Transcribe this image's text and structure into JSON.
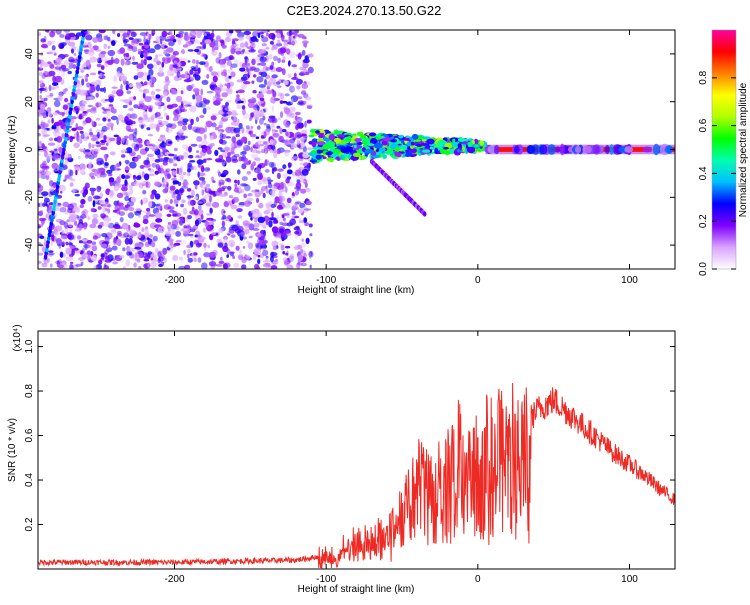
{
  "figure": {
    "title": "C2E3.2024.270.13.50.G22"
  },
  "chart_data": [
    {
      "type": "heatmap",
      "xlabel": "Height of straight line (km)",
      "ylabel": "Frequency (Hz)",
      "xlim": [
        -290,
        130
      ],
      "ylim": [
        -50,
        50
      ],
      "x_ticks": [
        -200,
        -100,
        0,
        100
      ],
      "y_ticks": [
        -40,
        -20,
        0,
        20,
        40
      ],
      "colorbar": {
        "label": "Normalized spectral amplitude",
        "range": [
          0,
          1
        ],
        "ticks": [
          0.0,
          0.2,
          0.4,
          0.6,
          0.8
        ],
        "colors": [
          "#ffffff",
          "#d9a3ff",
          "#8000ff",
          "#0000ff",
          "#00bfff",
          "#00ffb0",
          "#00ff00",
          "#b0ff00",
          "#ffff00",
          "#ff8000",
          "#ff0000",
          "#ff00a0"
        ]
      },
      "regions": [
        {
          "from_km": -290,
          "to_km": -110,
          "frequency_hz": [
            -50,
            50
          ],
          "amplitude": 0.1
        },
        {
          "from_km": -110,
          "to_km": 5,
          "frequency_hz": [
            -5,
            8
          ],
          "amplitude": 0.5
        },
        {
          "from_km": 5,
          "to_km": 130,
          "frequency_hz": [
            -1,
            1
          ],
          "amplitude": 0.9
        }
      ],
      "streaks": [
        {
          "from": [
            -285,
            -45
          ],
          "to": [
            -260,
            48
          ]
        },
        {
          "from": [
            -70,
            -5
          ],
          "to": [
            -35,
            -27
          ]
        }
      ]
    },
    {
      "type": "line",
      "xlabel": "Height of straight line (km)",
      "ylabel": "SNR (10 * v/v)",
      "y_scale_label": "(x10⁴)",
      "xlim": [
        -290,
        130
      ],
      "ylim": [
        0,
        1.07
      ],
      "x_ticks": [
        -200,
        -100,
        0,
        100
      ],
      "y_ticks": [
        0.2,
        0.4,
        0.6,
        0.8,
        1.0
      ],
      "series": [
        {
          "color": "#ee2a24",
          "x": [
            -290,
            -200,
            -120,
            -100,
            -90,
            -80,
            -70,
            -60,
            -50,
            -40,
            -30,
            -20,
            -10,
            0,
            10,
            20,
            30,
            35,
            40,
            50,
            60,
            70,
            80,
            90,
            100,
            110,
            120,
            130
          ],
          "y": [
            0.03,
            0.03,
            0.04,
            0.06,
            0.1,
            0.16,
            0.18,
            0.25,
            0.36,
            0.55,
            0.52,
            0.6,
            0.82,
            0.7,
            0.75,
            0.8,
            0.86,
            0.68,
            0.72,
            0.76,
            0.7,
            0.64,
            0.58,
            0.52,
            0.47,
            0.42,
            0.36,
            0.31
          ]
        }
      ]
    }
  ]
}
